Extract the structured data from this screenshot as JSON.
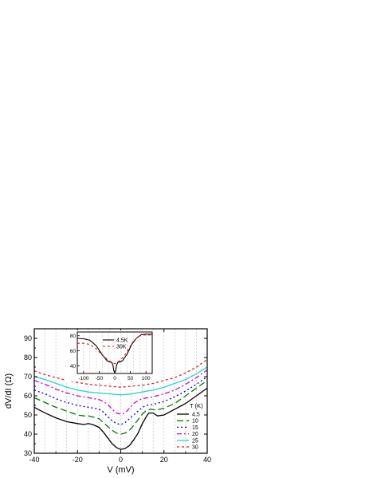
{
  "chart_data": [
    {
      "type": "line",
      "xlabel": "V (mV)",
      "ylabel": "dV/dI (Ω)",
      "xlim": [
        -40,
        40
      ],
      "ylim": [
        30,
        95
      ],
      "x_ticks": [
        -40,
        -20,
        0,
        20,
        40
      ],
      "y_ticks": [
        30,
        40,
        50,
        60,
        70,
        80,
        90
      ],
      "grid": "vertical dashed lines",
      "legend": {
        "title": "T (K)",
        "placement": "bottom-right"
      },
      "series": [
        {
          "name": "4.5",
          "color": "#000000",
          "dash": "solid",
          "points": [
            [
              -40,
              54
            ],
            [
              -35,
              51
            ],
            [
              -30,
              48.5
            ],
            [
              -25,
              46.5
            ],
            [
              -20,
              45.5
            ],
            [
              -17,
              45
            ],
            [
              -15,
              45.5
            ],
            [
              -13,
              45
            ],
            [
              -10,
              43.5
            ],
            [
              -8,
              41
            ],
            [
              -6,
              38
            ],
            [
              -4,
              35
            ],
            [
              -2,
              33
            ],
            [
              0,
              32
            ],
            [
              2,
              32.5
            ],
            [
              4,
              34
            ],
            [
              6,
              37
            ],
            [
              8,
              40.5
            ],
            [
              10,
              45.5
            ],
            [
              12,
              49.5
            ],
            [
              13,
              51
            ],
            [
              15,
              51
            ],
            [
              17,
              49.5
            ],
            [
              20,
              50
            ],
            [
              25,
              53
            ],
            [
              30,
              56
            ],
            [
              35,
              60
            ],
            [
              40,
              64
            ]
          ]
        },
        {
          "name": "10",
          "color": "#007a00",
          "dash": "8,4",
          "points": [
            [
              -40,
              59
            ],
            [
              -35,
              56.5
            ],
            [
              -30,
              54
            ],
            [
              -25,
              52
            ],
            [
              -20,
              50
            ],
            [
              -17,
              49.5
            ],
            [
              -15,
              49.5
            ],
            [
              -13,
              49
            ],
            [
              -10,
              48
            ],
            [
              -8,
              46
            ],
            [
              -6,
              44
            ],
            [
              -4,
              42
            ],
            [
              -2,
              40.5
            ],
            [
              0,
              40
            ],
            [
              2,
              40.5
            ],
            [
              4,
              42
            ],
            [
              6,
              44.5
            ],
            [
              8,
              47.5
            ],
            [
              10,
              50.5
            ],
            [
              12,
              52.5
            ],
            [
              14,
              53
            ],
            [
              16,
              52.5
            ],
            [
              20,
              53.5
            ],
            [
              25,
              56
            ],
            [
              30,
              60
            ],
            [
              35,
              64
            ],
            [
              40,
              68
            ]
          ]
        },
        {
          "name": "15",
          "color": "#0000cc",
          "dash": "2,3",
          "points": [
            [
              -40,
              63
            ],
            [
              -35,
              61
            ],
            [
              -30,
              58.5
            ],
            [
              -25,
              56.5
            ],
            [
              -20,
              55
            ],
            [
              -15,
              54
            ],
            [
              -12,
              53.5
            ],
            [
              -10,
              53
            ],
            [
              -8,
              51.5
            ],
            [
              -6,
              49
            ],
            [
              -4,
              47
            ],
            [
              -2,
              45.5
            ],
            [
              0,
              45
            ],
            [
              2,
              46
            ],
            [
              4,
              48
            ],
            [
              6,
              50
            ],
            [
              8,
              52
            ],
            [
              10,
              54
            ],
            [
              12,
              55
            ],
            [
              15,
              55.5
            ],
            [
              20,
              57
            ],
            [
              25,
              59.5
            ],
            [
              30,
              62.5
            ],
            [
              35,
              66
            ],
            [
              40,
              70
            ]
          ]
        },
        {
          "name": "20",
          "color": "#cc00cc",
          "dash": "6,3,2,3",
          "points": [
            [
              -40,
              68
            ],
            [
              -35,
              66
            ],
            [
              -30,
              63.5
            ],
            [
              -25,
              61.5
            ],
            [
              -20,
              60
            ],
            [
              -15,
              59
            ],
            [
              -10,
              58
            ],
            [
              -8,
              57
            ],
            [
              -6,
              55.5
            ],
            [
              -4,
              53
            ],
            [
              -2,
              51
            ],
            [
              0,
              50.5
            ],
            [
              2,
              51
            ],
            [
              4,
              53.5
            ],
            [
              6,
              56
            ],
            [
              8,
              57.5
            ],
            [
              10,
              58.5
            ],
            [
              15,
              59.5
            ],
            [
              20,
              61
            ],
            [
              25,
              63
            ],
            [
              30,
              66
            ],
            [
              35,
              69.5
            ],
            [
              40,
              73.5
            ]
          ]
        },
        {
          "name": "25",
          "color": "#22d3d3",
          "dash": "solid",
          "points": [
            [
              -40,
              70
            ],
            [
              -35,
              68.5
            ],
            [
              -30,
              66.5
            ],
            [
              -25,
              64.5
            ],
            [
              -20,
              63
            ],
            [
              -15,
              62
            ],
            [
              -10,
              61.5
            ],
            [
              -5,
              61
            ],
            [
              0,
              60.5
            ],
            [
              5,
              61
            ],
            [
              10,
              62
            ],
            [
              15,
              63
            ],
            [
              20,
              64.5
            ],
            [
              25,
              66.5
            ],
            [
              30,
              68.5
            ],
            [
              35,
              71.5
            ],
            [
              40,
              75
            ]
          ]
        },
        {
          "name": "30",
          "color": "#dd2222",
          "dash": "3,3",
          "points": [
            [
              -40,
              73
            ],
            [
              -35,
              71
            ],
            [
              -30,
              69.5
            ],
            [
              -25,
              68
            ],
            [
              -20,
              67
            ],
            [
              -15,
              66
            ],
            [
              -10,
              65.5
            ],
            [
              -5,
              65
            ],
            [
              0,
              64.5
            ],
            [
              5,
              65
            ],
            [
              10,
              65.5
            ],
            [
              15,
              66.5
            ],
            [
              20,
              68
            ],
            [
              25,
              69.5
            ],
            [
              30,
              72
            ],
            [
              35,
              75
            ],
            [
              40,
              79
            ]
          ]
        }
      ]
    },
    {
      "type": "line",
      "xlabel": "",
      "ylabel": "",
      "xlim": [
        -120,
        120
      ],
      "ylim": [
        30,
        85
      ],
      "x_ticks": [
        -100,
        -50,
        0,
        50,
        100
      ],
      "y_ticks": [
        40,
        60,
        80
      ],
      "grid": "vertical dashed lines",
      "legend": {
        "placement": "top-center"
      },
      "series": [
        {
          "name": "4.5K",
          "color": "#000000",
          "dash": "solid",
          "points": [
            [
              -120,
              76.5
            ],
            [
              -100,
              76
            ],
            [
              -80,
              74
            ],
            [
              -60,
              67
            ],
            [
              -40,
              55
            ],
            [
              -25,
              47
            ],
            [
              -15,
              45
            ],
            [
              -10,
              45
            ],
            [
              -6,
              41
            ],
            [
              -3,
              34
            ],
            [
              0,
              31
            ],
            [
              3,
              34
            ],
            [
              6,
              41
            ],
            [
              10,
              45
            ],
            [
              15,
              45
            ],
            [
              25,
              47
            ],
            [
              40,
              56
            ],
            [
              55,
              69
            ],
            [
              70,
              77
            ],
            [
              85,
              81.5
            ],
            [
              100,
              82
            ],
            [
              120,
              82
            ]
          ]
        },
        {
          "name": "30K",
          "color": "#dd2222",
          "dash": "3,3",
          "points": [
            [
              -120,
              70
            ],
            [
              -100,
              70
            ],
            [
              -80,
              68.5
            ],
            [
              -60,
              63
            ],
            [
              -40,
              54
            ],
            [
              -25,
              49
            ],
            [
              -15,
              46
            ],
            [
              -5,
              44
            ],
            [
              0,
              43
            ],
            [
              5,
              44
            ],
            [
              15,
              47
            ],
            [
              30,
              53
            ],
            [
              45,
              63
            ],
            [
              60,
              73
            ],
            [
              75,
              79
            ],
            [
              90,
              81
            ],
            [
              100,
              81
            ],
            [
              120,
              81
            ]
          ]
        }
      ]
    }
  ]
}
